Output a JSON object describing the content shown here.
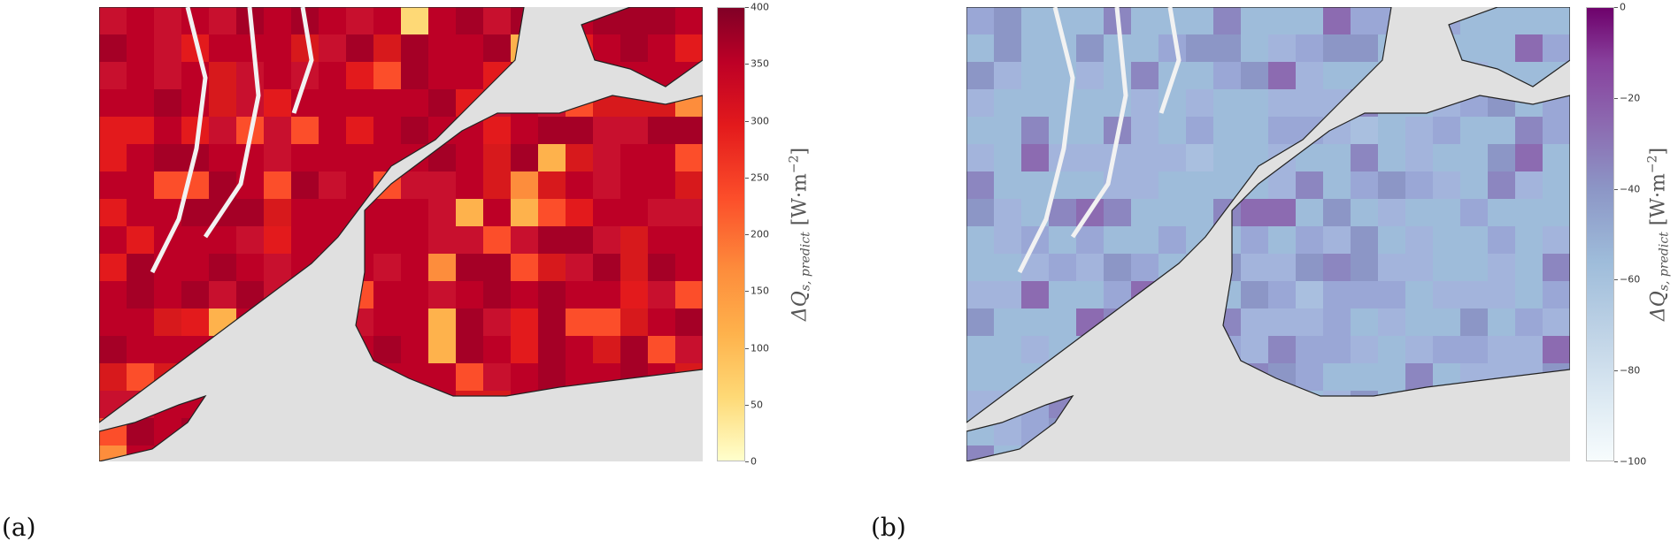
{
  "panels": [
    {
      "label": "(a)",
      "colorbar": {
        "ticks": [
          "400",
          "350",
          "300",
          "250",
          "200",
          "150",
          "100",
          "50",
          "0"
        ],
        "title_symbol": "ΔQ",
        "title_subscript": "s, predict",
        "title_units": "[W·m",
        "title_exponent": "−2",
        "title_close": "]",
        "colormap": "YlOrRd",
        "range": [
          0,
          400
        ]
      },
      "colors": {
        "cell_palette": [
          "#bd0026",
          "#a50026",
          "#c8102e",
          "#d7191c",
          "#e31a1c",
          "#fc4e2a",
          "#fd8d3c",
          "#feb24c",
          "#fed976"
        ]
      }
    },
    {
      "label": "(b)",
      "colorbar": {
        "ticks": [
          "0",
          "−20",
          "−40",
          "−60",
          "−80",
          "−100"
        ],
        "title_symbol": "ΔQ",
        "title_subscript": "s, predict",
        "title_units": "[W·m",
        "title_exponent": "−2",
        "title_close": "]",
        "colormap": "BuPu",
        "range": [
          -100,
          0
        ]
      },
      "colors": {
        "cell_palette": [
          "#9ebcda",
          "#a3b4dc",
          "#9aa7d6",
          "#8c96c6",
          "#8c86c0",
          "#8c6bb1",
          "#a9bfdf"
        ]
      }
    }
  ],
  "colors": {
    "water": "#e0e0e0",
    "coastline": "#222222"
  }
}
